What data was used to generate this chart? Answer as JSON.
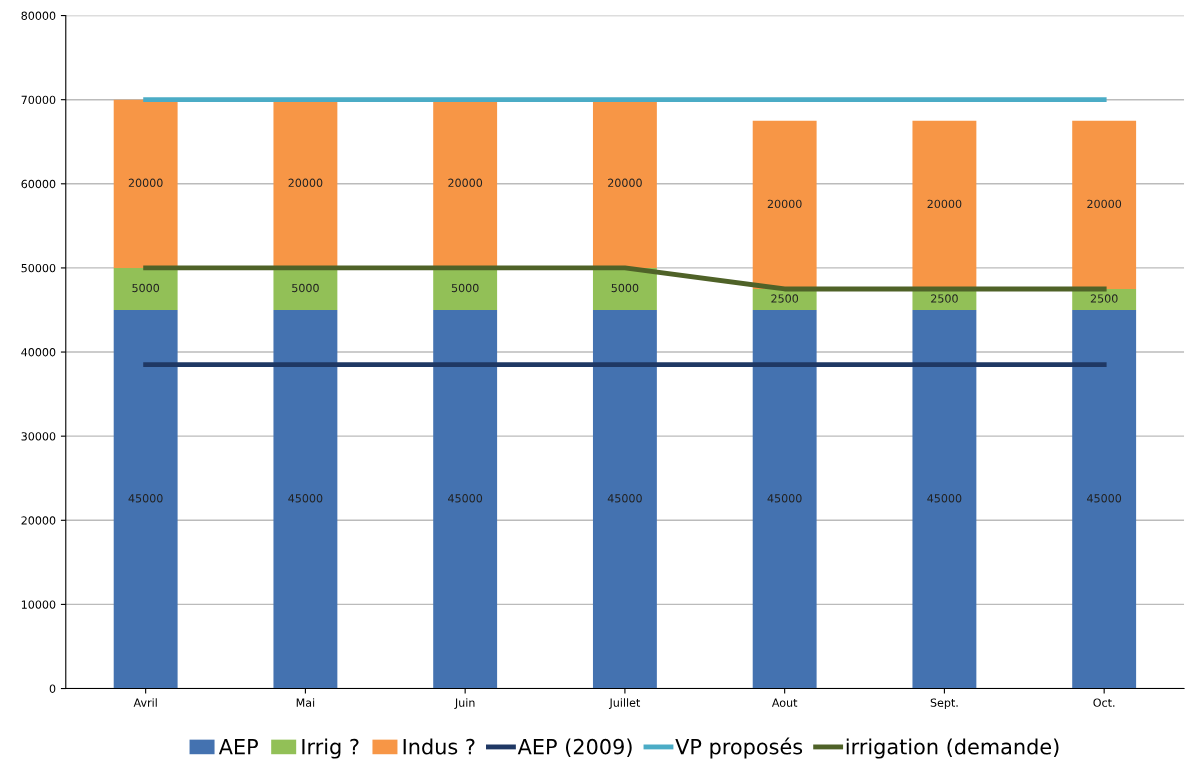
{
  "chart_data": {
    "type": "bar",
    "stacked": true,
    "categories": [
      "Avril",
      "Mai",
      "Juin",
      "Juillet",
      "Aout",
      "Sept.",
      "Oct."
    ],
    "series": [
      {
        "name": "AEP",
        "color": "#4472b0",
        "values": [
          45000,
          45000,
          45000,
          45000,
          45000,
          45000,
          45000
        ],
        "value_labels": [
          "45000",
          "45000",
          "45000",
          "45000",
          "45000",
          "45000",
          "45000"
        ]
      },
      {
        "name": "Irrig ?",
        "color": "#92c057",
        "values": [
          5000,
          5000,
          5000,
          5000,
          2500,
          2500,
          2500
        ],
        "value_labels": [
          "5000",
          "5000",
          "5000",
          "5000",
          "2500",
          "2500",
          "2500"
        ]
      },
      {
        "name": "Indus ?",
        "color": "#f79646",
        "values": [
          20000,
          20000,
          20000,
          20000,
          20000,
          20000,
          20000
        ],
        "value_labels": [
          "20000",
          "20000",
          "20000",
          "20000",
          "20000",
          "20000",
          "20000"
        ]
      },
      {
        "name": "AEP (2009)",
        "type": "line",
        "color": "#1f3864",
        "values": [
          38500,
          38500,
          38500,
          38500,
          38500,
          38500,
          38500
        ]
      },
      {
        "name": "VP proposés",
        "type": "line",
        "color": "#4bacc6",
        "values": [
          70000,
          70000,
          70000,
          70000,
          70000,
          70000,
          70000
        ]
      },
      {
        "name": "irrigation (demande)",
        "type": "line",
        "color": "#4f6228",
        "values": [
          50000,
          50000,
          50000,
          50000,
          47500,
          47500,
          47500
        ]
      }
    ],
    "ylim": [
      0,
      80000
    ],
    "yticks": [
      0,
      10000,
      20000,
      30000,
      40000,
      50000,
      60000,
      70000,
      80000
    ],
    "grid": "y",
    "legend": "bottom",
    "marker": "none",
    "line_style": "solid"
  }
}
